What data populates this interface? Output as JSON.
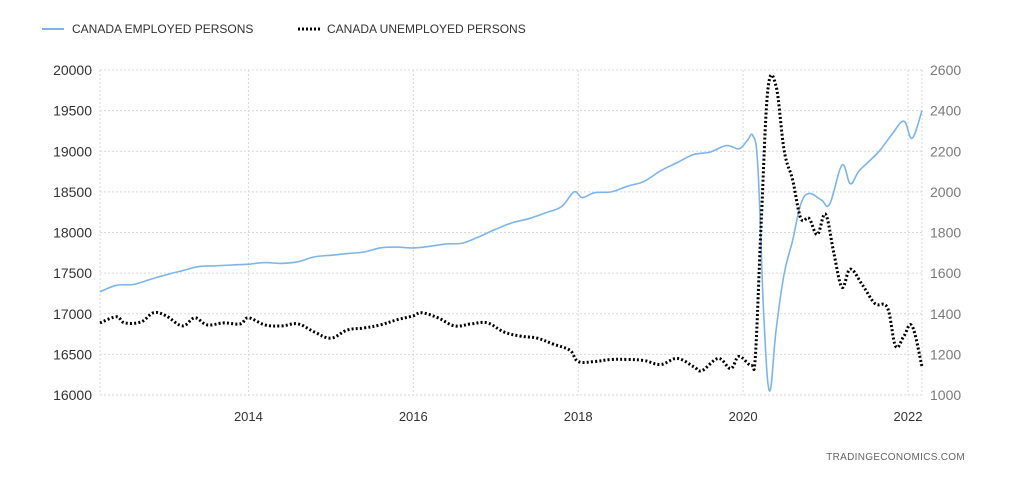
{
  "source": "TRADINGECONOMICS.COM",
  "colors": {
    "employed": "#7cb5ec",
    "unemployed": "#000000",
    "grid": "#d8d8d8"
  },
  "chart_data": {
    "type": "line",
    "title": "",
    "legend_position": "top-left",
    "grid": true,
    "x_ticks": [
      "2014",
      "2016",
      "2018",
      "2020",
      "2022"
    ],
    "x_range": [
      2012.2,
      2022.17
    ],
    "y_left": {
      "range": [
        16000,
        20000
      ],
      "ticks": [
        16000,
        16500,
        17000,
        17500,
        18000,
        18500,
        19000,
        19500,
        20000
      ]
    },
    "y_right": {
      "range": [
        1000,
        2600
      ],
      "ticks": [
        1000,
        1200,
        1400,
        1600,
        1800,
        2000,
        2200,
        2400,
        2600
      ]
    },
    "series": [
      {
        "name": "CANADA EMPLOYED PERSONS",
        "axis": "left",
        "style": "solid",
        "points": [
          [
            2012.2,
            17270
          ],
          [
            2012.4,
            17350
          ],
          [
            2012.6,
            17360
          ],
          [
            2012.8,
            17420
          ],
          [
            2013.0,
            17480
          ],
          [
            2013.2,
            17530
          ],
          [
            2013.4,
            17580
          ],
          [
            2013.6,
            17590
          ],
          [
            2013.8,
            17600
          ],
          [
            2014.0,
            17610
          ],
          [
            2014.2,
            17630
          ],
          [
            2014.4,
            17620
          ],
          [
            2014.6,
            17640
          ],
          [
            2014.8,
            17700
          ],
          [
            2015.0,
            17720
          ],
          [
            2015.2,
            17740
          ],
          [
            2015.4,
            17760
          ],
          [
            2015.6,
            17810
          ],
          [
            2015.8,
            17820
          ],
          [
            2016.0,
            17810
          ],
          [
            2016.2,
            17830
          ],
          [
            2016.4,
            17860
          ],
          [
            2016.6,
            17870
          ],
          [
            2016.8,
            17950
          ],
          [
            2017.0,
            18040
          ],
          [
            2017.2,
            18120
          ],
          [
            2017.4,
            18170
          ],
          [
            2017.6,
            18240
          ],
          [
            2017.8,
            18320
          ],
          [
            2017.95,
            18500
          ],
          [
            2018.05,
            18430
          ],
          [
            2018.2,
            18490
          ],
          [
            2018.4,
            18500
          ],
          [
            2018.6,
            18570
          ],
          [
            2018.8,
            18630
          ],
          [
            2019.0,
            18760
          ],
          [
            2019.2,
            18860
          ],
          [
            2019.4,
            18960
          ],
          [
            2019.6,
            18990
          ],
          [
            2019.8,
            19070
          ],
          [
            2019.95,
            19030
          ],
          [
            2020.05,
            19130
          ],
          [
            2020.12,
            19190
          ],
          [
            2020.18,
            18800
          ],
          [
            2020.25,
            17000
          ],
          [
            2020.32,
            16050
          ],
          [
            2020.4,
            16800
          ],
          [
            2020.5,
            17500
          ],
          [
            2020.6,
            17900
          ],
          [
            2020.7,
            18350
          ],
          [
            2020.8,
            18480
          ],
          [
            2020.95,
            18400
          ],
          [
            2021.05,
            18350
          ],
          [
            2021.2,
            18830
          ],
          [
            2021.3,
            18600
          ],
          [
            2021.4,
            18750
          ],
          [
            2021.5,
            18850
          ],
          [
            2021.65,
            19000
          ],
          [
            2021.8,
            19200
          ],
          [
            2021.95,
            19370
          ],
          [
            2022.05,
            19160
          ],
          [
            2022.17,
            19500
          ]
        ]
      },
      {
        "name": "CANADA UNEMPLOYED PERSONS",
        "axis": "right",
        "style": "dotted",
        "points": [
          [
            2012.2,
            1355
          ],
          [
            2012.4,
            1385
          ],
          [
            2012.5,
            1355
          ],
          [
            2012.7,
            1360
          ],
          [
            2012.85,
            1405
          ],
          [
            2013.0,
            1390
          ],
          [
            2013.2,
            1340
          ],
          [
            2013.35,
            1380
          ],
          [
            2013.5,
            1345
          ],
          [
            2013.7,
            1355
          ],
          [
            2013.9,
            1350
          ],
          [
            2014.0,
            1380
          ],
          [
            2014.2,
            1345
          ],
          [
            2014.4,
            1340
          ],
          [
            2014.6,
            1350
          ],
          [
            2014.8,
            1310
          ],
          [
            2015.0,
            1280
          ],
          [
            2015.2,
            1320
          ],
          [
            2015.4,
            1330
          ],
          [
            2015.6,
            1345
          ],
          [
            2015.8,
            1370
          ],
          [
            2016.0,
            1390
          ],
          [
            2016.1,
            1405
          ],
          [
            2016.3,
            1380
          ],
          [
            2016.5,
            1340
          ],
          [
            2016.7,
            1350
          ],
          [
            2016.9,
            1355
          ],
          [
            2017.1,
            1310
          ],
          [
            2017.3,
            1290
          ],
          [
            2017.5,
            1280
          ],
          [
            2017.7,
            1250
          ],
          [
            2017.9,
            1220
          ],
          [
            2018.0,
            1165
          ],
          [
            2018.2,
            1165
          ],
          [
            2018.4,
            1175
          ],
          [
            2018.6,
            1175
          ],
          [
            2018.8,
            1170
          ],
          [
            2019.0,
            1150
          ],
          [
            2019.2,
            1180
          ],
          [
            2019.4,
            1140
          ],
          [
            2019.5,
            1120
          ],
          [
            2019.7,
            1180
          ],
          [
            2019.85,
            1130
          ],
          [
            2019.95,
            1190
          ],
          [
            2020.1,
            1145
          ],
          [
            2020.15,
            1200
          ],
          [
            2020.22,
            1850
          ],
          [
            2020.3,
            2500
          ],
          [
            2020.4,
            2520
          ],
          [
            2020.5,
            2200
          ],
          [
            2020.6,
            2060
          ],
          [
            2020.7,
            1870
          ],
          [
            2020.8,
            1870
          ],
          [
            2020.9,
            1790
          ],
          [
            2021.0,
            1890
          ],
          [
            2021.1,
            1700
          ],
          [
            2021.2,
            1530
          ],
          [
            2021.3,
            1620
          ],
          [
            2021.45,
            1540
          ],
          [
            2021.6,
            1450
          ],
          [
            2021.75,
            1430
          ],
          [
            2021.85,
            1240
          ],
          [
            2021.95,
            1290
          ],
          [
            2022.05,
            1340
          ],
          [
            2022.17,
            1140
          ]
        ]
      }
    ]
  }
}
